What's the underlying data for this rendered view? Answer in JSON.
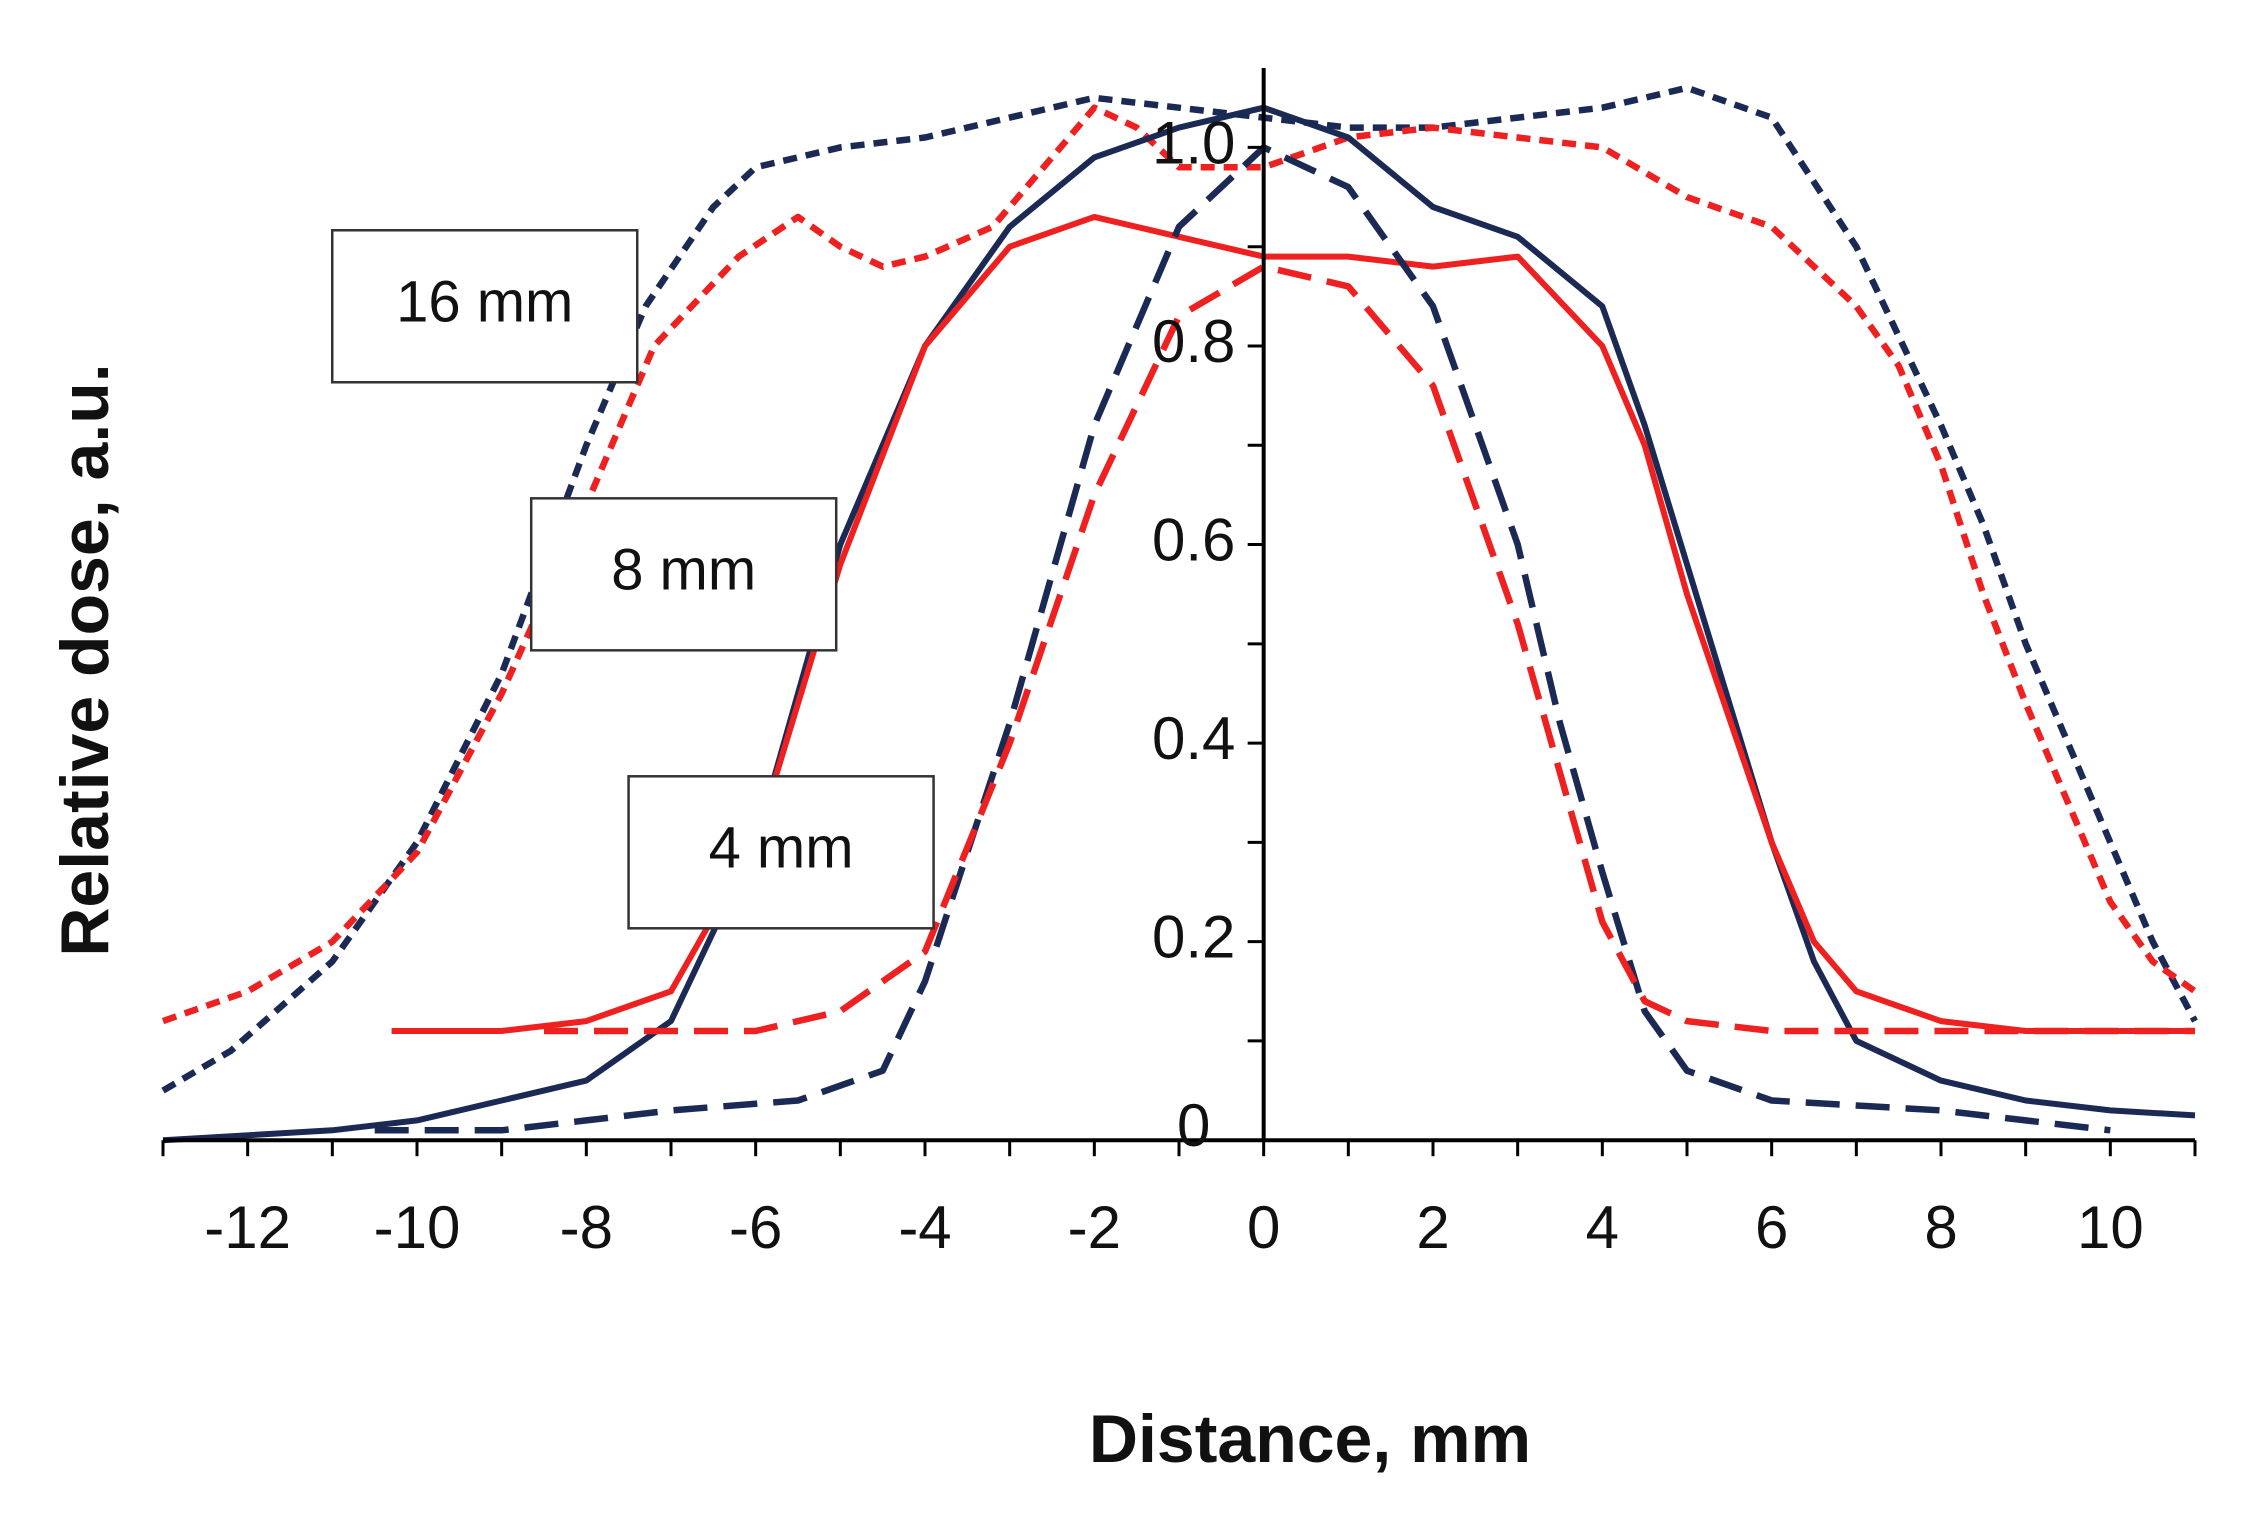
{
  "chart_data": {
    "type": "line",
    "title": "",
    "xlabel": "Distance, mm",
    "ylabel": "Relative dose,  a.u.",
    "xlim": [
      -13,
      11
    ],
    "ylim": [
      -0.03,
      1.08
    ],
    "x_ticks": [
      -12,
      -10,
      -8,
      -6,
      -4,
      -2,
      0,
      2,
      4,
      6,
      8,
      10
    ],
    "x_tick_labels": [
      "-12",
      "-10",
      "-8",
      "-6",
      "-4",
      "-2",
      "0",
      "2",
      "4",
      "6",
      "8",
      "10"
    ],
    "y_ticks": [
      0,
      0.2,
      0.4,
      0.6,
      0.8,
      1.0
    ],
    "y_tick_labels": [
      "0",
      "0.2",
      "0.4",
      "0.6",
      "0.8",
      "1.0"
    ],
    "annotations": [
      {
        "text": "16 mm",
        "x": -9.2,
        "y": 0.84
      },
      {
        "text": "8 mm",
        "x": -6.85,
        "y": 0.57
      },
      {
        "text": "4 mm",
        "x": -5.7,
        "y": 0.29
      }
    ],
    "series": [
      {
        "name": "16 mm (navy, dashed)",
        "color": "#1b2a55",
        "dash": "short",
        "points": [
          [
            -13,
            0.05
          ],
          [
            -12.2,
            0.09
          ],
          [
            -11,
            0.18
          ],
          [
            -10,
            0.3
          ],
          [
            -9,
            0.47
          ],
          [
            -8,
            0.7
          ],
          [
            -7.3,
            0.84
          ],
          [
            -6.5,
            0.94
          ],
          [
            -6,
            0.98
          ],
          [
            -5,
            1.0
          ],
          [
            -4,
            1.01
          ],
          [
            -3,
            1.03
          ],
          [
            -2,
            1.05
          ],
          [
            -1,
            1.04
          ],
          [
            0,
            1.03
          ],
          [
            1,
            1.02
          ],
          [
            2,
            1.02
          ],
          [
            3,
            1.03
          ],
          [
            4,
            1.04
          ],
          [
            5,
            1.06
          ],
          [
            6,
            1.03
          ],
          [
            7,
            0.9
          ],
          [
            8,
            0.72
          ],
          [
            8.5,
            0.62
          ],
          [
            9,
            0.5
          ],
          [
            9.5,
            0.4
          ],
          [
            10,
            0.3
          ],
          [
            10.5,
            0.2
          ],
          [
            11,
            0.12
          ]
        ]
      },
      {
        "name": "16 mm (red, dashed)",
        "color": "#ef2020",
        "dash": "short",
        "points": [
          [
            -13,
            0.12
          ],
          [
            -12,
            0.15
          ],
          [
            -11,
            0.2
          ],
          [
            -10,
            0.29
          ],
          [
            -9,
            0.45
          ],
          [
            -8,
            0.64
          ],
          [
            -7.2,
            0.8
          ],
          [
            -6.2,
            0.89
          ],
          [
            -5.5,
            0.93
          ],
          [
            -5,
            0.9
          ],
          [
            -4.5,
            0.88
          ],
          [
            -4,
            0.89
          ],
          [
            -3.2,
            0.92
          ],
          [
            -2.5,
            0.99
          ],
          [
            -2,
            1.04
          ],
          [
            -1.5,
            1.02
          ],
          [
            -1,
            0.98
          ],
          [
            0,
            0.98
          ],
          [
            1,
            1.01
          ],
          [
            2,
            1.02
          ],
          [
            3,
            1.01
          ],
          [
            4,
            1.0
          ],
          [
            5,
            0.95
          ],
          [
            6,
            0.92
          ],
          [
            7,
            0.84
          ],
          [
            7.5,
            0.78
          ],
          [
            8,
            0.68
          ],
          [
            8.5,
            0.55
          ],
          [
            9,
            0.44
          ],
          [
            9.5,
            0.34
          ],
          [
            10,
            0.24
          ],
          [
            10.5,
            0.18
          ],
          [
            11,
            0.15
          ]
        ]
      },
      {
        "name": "8 mm (navy, solid)",
        "color": "#1b2a55",
        "dash": "solid",
        "points": [
          [
            -13,
            0.0
          ],
          [
            -11,
            0.01
          ],
          [
            -10,
            0.02
          ],
          [
            -9,
            0.04
          ],
          [
            -8,
            0.06
          ],
          [
            -7,
            0.12
          ],
          [
            -6,
            0.3
          ],
          [
            -5,
            0.6
          ],
          [
            -4,
            0.8
          ],
          [
            -3,
            0.92
          ],
          [
            -2,
            0.99
          ],
          [
            -1,
            1.02
          ],
          [
            0,
            1.04
          ],
          [
            1,
            1.01
          ],
          [
            2,
            0.94
          ],
          [
            3,
            0.91
          ],
          [
            4,
            0.84
          ],
          [
            4.5,
            0.72
          ],
          [
            5,
            0.58
          ],
          [
            6,
            0.3
          ],
          [
            6.5,
            0.18
          ],
          [
            7,
            0.1
          ],
          [
            8,
            0.06
          ],
          [
            9,
            0.04
          ],
          [
            10,
            0.03
          ],
          [
            11,
            0.025
          ]
        ]
      },
      {
        "name": "8 mm (red, solid)",
        "color": "#ef2020",
        "dash": "solid",
        "points": [
          [
            -10.3,
            0.11
          ],
          [
            -9,
            0.11
          ],
          [
            -8,
            0.12
          ],
          [
            -7,
            0.15
          ],
          [
            -6,
            0.3
          ],
          [
            -5,
            0.58
          ],
          [
            -4,
            0.8
          ],
          [
            -3,
            0.9
          ],
          [
            -2,
            0.93
          ],
          [
            -1,
            0.91
          ],
          [
            0,
            0.89
          ],
          [
            1,
            0.89
          ],
          [
            2,
            0.88
          ],
          [
            3,
            0.89
          ],
          [
            4,
            0.8
          ],
          [
            4.5,
            0.7
          ],
          [
            5,
            0.55
          ],
          [
            6,
            0.3
          ],
          [
            6.5,
            0.2
          ],
          [
            7,
            0.15
          ],
          [
            8,
            0.12
          ],
          [
            9,
            0.11
          ],
          [
            10,
            0.11
          ],
          [
            11,
            0.11
          ]
        ]
      },
      {
        "name": "4 mm (navy, dashed)",
        "color": "#1b2a55",
        "dash": "long",
        "points": [
          [
            -10.5,
            0.01
          ],
          [
            -9,
            0.01
          ],
          [
            -8,
            0.02
          ],
          [
            -7,
            0.03
          ],
          [
            -5.5,
            0.04
          ],
          [
            -4.5,
            0.07
          ],
          [
            -4,
            0.16
          ],
          [
            -3,
            0.42
          ],
          [
            -2,
            0.72
          ],
          [
            -1,
            0.92
          ],
          [
            0,
            1.0
          ],
          [
            1,
            0.96
          ],
          [
            2,
            0.84
          ],
          [
            3,
            0.6
          ],
          [
            3.5,
            0.42
          ],
          [
            4,
            0.27
          ],
          [
            4.5,
            0.13
          ],
          [
            5,
            0.07
          ],
          [
            6,
            0.04
          ],
          [
            7,
            0.035
          ],
          [
            8,
            0.03
          ],
          [
            9,
            0.02
          ],
          [
            10,
            0.01
          ]
        ]
      },
      {
        "name": "4 mm (red, dashed)",
        "color": "#ef2020",
        "dash": "long",
        "points": [
          [
            -8.5,
            0.11
          ],
          [
            -7,
            0.11
          ],
          [
            -6,
            0.11
          ],
          [
            -5,
            0.13
          ],
          [
            -4,
            0.19
          ],
          [
            -3,
            0.4
          ],
          [
            -2,
            0.65
          ],
          [
            -1,
            0.83
          ],
          [
            0,
            0.88
          ],
          [
            1,
            0.86
          ],
          [
            2,
            0.76
          ],
          [
            3,
            0.52
          ],
          [
            3.5,
            0.37
          ],
          [
            4,
            0.22
          ],
          [
            4.5,
            0.14
          ],
          [
            5,
            0.12
          ],
          [
            6,
            0.11
          ],
          [
            8,
            0.11
          ],
          [
            10,
            0.11
          ],
          [
            11,
            0.11
          ]
        ]
      }
    ]
  }
}
